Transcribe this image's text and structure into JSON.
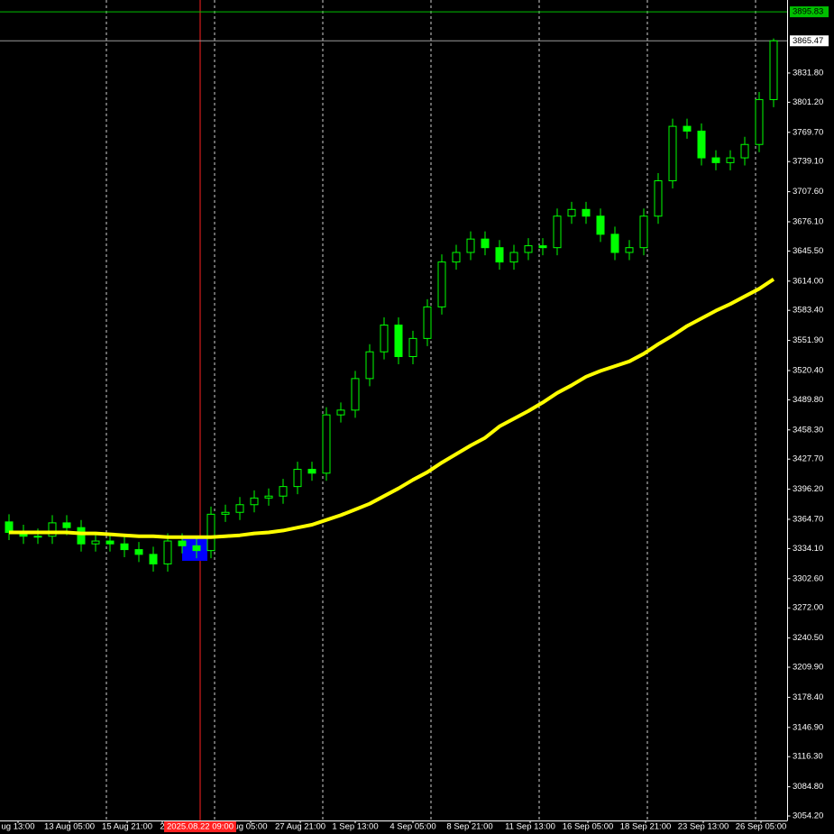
{
  "chart_data": {
    "type": "candlestick",
    "ylim": [
      3051.4,
      3908.2
    ],
    "yticks": [
      {
        "value": 3054.2,
        "label": "3054.20"
      },
      {
        "value": 3084.8,
        "label": "3084.80"
      },
      {
        "value": 3116.3,
        "label": "3116.30"
      },
      {
        "value": 3146.9,
        "label": "3146.90"
      },
      {
        "value": 3178.4,
        "label": "3178.40"
      },
      {
        "value": 3209.9,
        "label": "3209.90"
      },
      {
        "value": 3240.5,
        "label": "3240.50"
      },
      {
        "value": 3272.0,
        "label": "3272.00"
      },
      {
        "value": 3302.6,
        "label": "3302.60"
      },
      {
        "value": 3334.1,
        "label": "3334.10"
      },
      {
        "value": 3364.7,
        "label": "3364.70"
      },
      {
        "value": 3396.2,
        "label": "3396.20"
      },
      {
        "value": 3427.7,
        "label": "3427.70"
      },
      {
        "value": 3458.3,
        "label": "3458.30"
      },
      {
        "value": 3489.8,
        "label": "3489.80"
      },
      {
        "value": 3520.4,
        "label": "3520.40"
      },
      {
        "value": 3551.9,
        "label": "3551.90"
      },
      {
        "value": 3583.4,
        "label": "3583.40"
      },
      {
        "value": 3614.0,
        "label": "3614.00"
      },
      {
        "value": 3645.5,
        "label": "3645.50"
      },
      {
        "value": 3676.1,
        "label": "3676.10"
      },
      {
        "value": 3707.6,
        "label": "3707.60"
      },
      {
        "value": 3739.1,
        "label": "3739.10"
      },
      {
        "value": 3769.7,
        "label": "3769.70"
      },
      {
        "value": 3801.2,
        "label": "3801.20"
      },
      {
        "value": 3831.8,
        "label": "3831.80"
      }
    ],
    "xlim": [
      -0.625,
      57.1875
    ],
    "xticks": [
      {
        "value": 0.625,
        "label": "ug 13:00"
      },
      {
        "value": 4.19,
        "label": "13 Aug 05:00"
      },
      {
        "value": 8.19,
        "label": "15 Aug 21:00"
      },
      {
        "value": 10.625,
        "label": "2"
      },
      {
        "value": 16.75,
        "label": "ug 05:00"
      },
      {
        "value": 20.19,
        "label": "27 Aug 21:00"
      },
      {
        "value": 24,
        "label": "1 Sep 13:00"
      },
      {
        "value": 28,
        "label": "4 Sep 05:00"
      },
      {
        "value": 31.94,
        "label": "8 Sep 21:00"
      },
      {
        "value": 36.125,
        "label": "11 Sep 13:00"
      },
      {
        "value": 40.125,
        "label": "16 Sep 05:00"
      },
      {
        "value": 44.125,
        "label": "18 Sep 21:00"
      },
      {
        "value": 48.125,
        "label": "23 Sep 13:00"
      },
      {
        "value": 52.125,
        "label": "26 Sep 05:00"
      }
    ],
    "xgrid": [
      6.75,
      14.25,
      21.75,
      29.25,
      36.75,
      44.25,
      51.75
    ],
    "cursor": {
      "value": 13.25,
      "label": "2025.08.22 09:00",
      "color": "#ff2020"
    },
    "price_lines": [
      {
        "value": 3895.83,
        "color": "#00c000"
      },
      {
        "value": 3865.47,
        "color": "#9a9a9a"
      }
    ],
    "color": "#00ff00",
    "open": [
      3362,
      3351,
      3347,
      3347,
      3361,
      3356,
      3339,
      3342,
      3339,
      3333,
      3328,
      3318,
      3342,
      3337,
      3332,
      3370,
      3372,
      3380,
      3387,
      3389,
      3399,
      3417,
      3413,
      3474,
      3479,
      3512,
      3540,
      3568,
      3535,
      3554,
      3587,
      3634,
      3644,
      3658,
      3649,
      3634,
      3644,
      3651,
      3649,
      3682,
      3689,
      3682,
      3663,
      3644,
      3649,
      3682,
      3719,
      3776,
      3771,
      3743,
      3738,
      3743,
      3757,
      3804
    ],
    "high": [
      3370,
      3359,
      3355,
      3369,
      3369,
      3364,
      3350,
      3350,
      3347,
      3341,
      3336,
      3350,
      3350,
      3345,
      3378,
      3380,
      3388,
      3395,
      3397,
      3407,
      3425,
      3425,
      3482,
      3487,
      3520,
      3548,
      3576,
      3576,
      3562,
      3595,
      3642,
      3652,
      3666,
      3666,
      3657,
      3652,
      3659,
      3659,
      3690,
      3697,
      3697,
      3690,
      3671,
      3657,
      3690,
      3727,
      3784,
      3784,
      3779,
      3751,
      3751,
      3765,
      3812,
      3868
    ],
    "low": [
      3343,
      3339,
      3339,
      3339,
      3348,
      3331,
      3331,
      3331,
      3325,
      3320,
      3310,
      3310,
      3329,
      3324,
      3324,
      3362,
      3364,
      3372,
      3379,
      3381,
      3391,
      3405,
      3405,
      3466,
      3471,
      3504,
      3532,
      3527,
      3527,
      3546,
      3579,
      3626,
      3636,
      3641,
      3626,
      3626,
      3636,
      3641,
      3641,
      3674,
      3674,
      3655,
      3636,
      3636,
      3641,
      3674,
      3711,
      3763,
      3735,
      3730,
      3730,
      3735,
      3749,
      3796
    ],
    "close": [
      3351,
      3347,
      3347,
      3361,
      3356,
      3339,
      3342,
      3339,
      3333,
      3328,
      3318,
      3342,
      3337,
      3332,
      3370,
      3372,
      3380,
      3387,
      3389,
      3399,
      3417,
      3413,
      3474,
      3479,
      3512,
      3540,
      3568,
      3535,
      3554,
      3587,
      3634,
      3644,
      3658,
      3649,
      3634,
      3644,
      3651,
      3649,
      3682,
      3689,
      3682,
      3663,
      3644,
      3649,
      3682,
      3719,
      3776,
      3771,
      3743,
      3738,
      3743,
      3757,
      3804,
      3865.47
    ],
    "ma": {
      "color": "#ffff00",
      "values": [
        3351,
        3351,
        3351,
        3351,
        3351,
        3350,
        3350,
        3349,
        3348,
        3347,
        3347,
        3346,
        3346,
        3346,
        3346,
        3347,
        3348,
        3350,
        3351,
        3353,
        3356,
        3359,
        3364,
        3369,
        3375,
        3381,
        3389,
        3397,
        3406,
        3414,
        3424,
        3433,
        3442,
        3450,
        3462,
        3470,
        3478,
        3487,
        3497,
        3505,
        3514,
        3520,
        3525,
        3530,
        3538,
        3548,
        3557,
        3567,
        3575,
        3583,
        3590,
        3598,
        3606,
        3616
      ]
    }
  }
}
